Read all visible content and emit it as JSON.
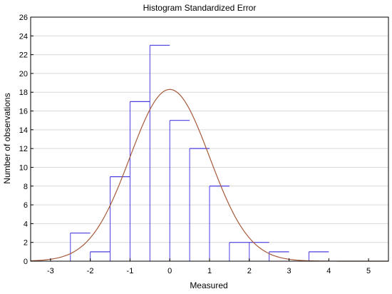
{
  "chart_data": {
    "type": "bar",
    "title": "Histogram  Standardized Error",
    "xlabel": "Measured",
    "ylabel": "Number of observations",
    "xlim": [
      -3.5,
      5.5
    ],
    "ylim": [
      0,
      26
    ],
    "xticks": [
      -3,
      -2,
      -1,
      0,
      1,
      2,
      3,
      4,
      5
    ],
    "yticks": [
      0,
      2,
      4,
      6,
      8,
      10,
      12,
      14,
      16,
      18,
      20,
      22,
      24,
      26
    ],
    "grid": true,
    "bars": [
      {
        "x": -2.25,
        "value": 3
      },
      {
        "x": -1.75,
        "value": 1
      },
      {
        "x": -1.25,
        "value": 9
      },
      {
        "x": -0.75,
        "value": 17
      },
      {
        "x": -0.25,
        "value": 23
      },
      {
        "x": 0.25,
        "value": 15
      },
      {
        "x": 0.75,
        "value": 12
      },
      {
        "x": 1.25,
        "value": 8
      },
      {
        "x": 1.75,
        "value": 2
      },
      {
        "x": 2.25,
        "value": 2
      },
      {
        "x": 2.75,
        "value": 1
      },
      {
        "x": 3.75,
        "value": 1
      }
    ],
    "bar_width": 0.5,
    "curve": {
      "type": "normal",
      "peak": 18.3,
      "mean": 0.0,
      "sd": 1.0
    },
    "colors": {
      "bars": "#4b3ee0",
      "curve": "#a65a3a",
      "grid": "#d9d9d9",
      "axis": "#000000"
    }
  }
}
